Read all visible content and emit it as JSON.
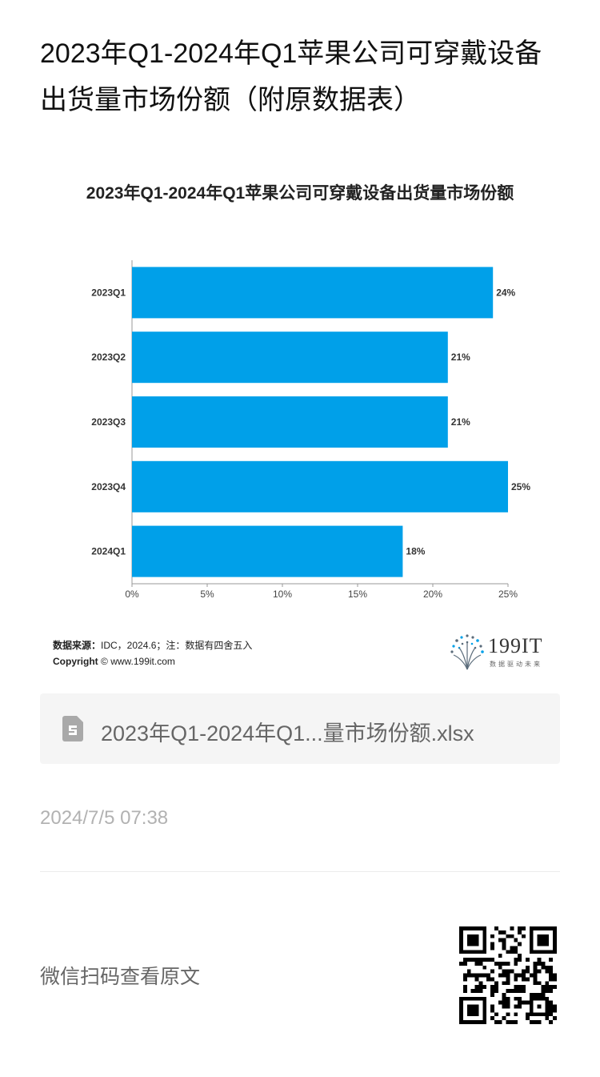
{
  "article": {
    "title": "2023年Q1-2024年Q1苹果公司可穿戴设备出货量市场份额（附原数据表）"
  },
  "chart": {
    "source_label": "数据来源：",
    "source_text": "IDC，2024.6；注：数据有四舍五入",
    "copyright_label": "Copyright",
    "copyright_text": "© www.199it.com",
    "bar_color": "#00a0e9"
  },
  "chart_data": {
    "type": "bar",
    "orientation": "horizontal",
    "title": "2023年Q1-2024年Q1苹果公司可穿戴设备出货量市场份额",
    "categories": [
      "2023Q1",
      "2023Q2",
      "2023Q3",
      "2023Q4",
      "2024Q1"
    ],
    "values": [
      24,
      21,
      21,
      25,
      18
    ],
    "data_labels": [
      "24%",
      "21%",
      "21%",
      "25%",
      "18%"
    ],
    "xlim": [
      0,
      25
    ],
    "x_ticks": [
      0,
      5,
      10,
      15,
      20,
      25
    ],
    "x_tick_labels": [
      "0%",
      "5%",
      "10%",
      "15%",
      "20%",
      "25%"
    ],
    "grid": false,
    "legend": "none"
  },
  "logo": {
    "name": "199IT",
    "tagline": "数据驱动未来"
  },
  "attachment": {
    "file_name": "2023年Q1-2024年Q1...量市场份额.xlsx",
    "icon": "spreadsheet-file-icon"
  },
  "meta": {
    "publish_time": "2024/7/5 07:38"
  },
  "footer": {
    "scan_text": "微信扫码查看原文",
    "qr_icon": "qr-code-icon"
  }
}
